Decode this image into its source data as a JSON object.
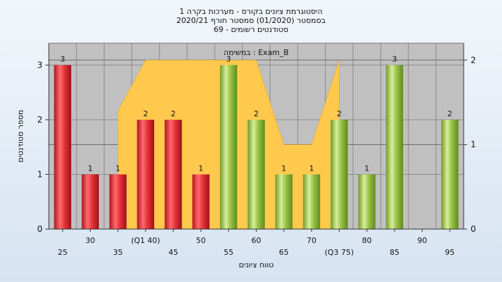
{
  "titles": [
    "היסטוגרמת ציונים בקורס - מערכות בקרה 1",
    "בסמסטר  (01/2020)  סמסטר חורף  2020/21",
    "סטודנטים רשומים - 69"
  ],
  "chart_data": {
    "type": "bar",
    "subtitle": "במשימה : Exam_B",
    "xlabel": "טווח ציונים",
    "ylabel": "מספר סטודנטים",
    "ylim": [
      0,
      3.4
    ],
    "y2lim": [
      0,
      2.2
    ],
    "yticks": [
      0,
      1,
      2,
      3
    ],
    "y2ticks": [
      0,
      1,
      2
    ],
    "grid": true,
    "categories": [
      "25",
      "30",
      "35",
      "40",
      "45",
      "50",
      "55",
      "60",
      "65",
      "70",
      "75",
      "80",
      "85",
      "90",
      "95"
    ],
    "tick_labels": [
      "25",
      "30",
      "35",
      "(Q1 40)",
      "45",
      "50",
      "55",
      "60",
      "65",
      "70",
      "(Q3 75)",
      "80",
      "85",
      "90",
      "95"
    ],
    "values": [
      3,
      1,
      1,
      2,
      2,
      1,
      3,
      2,
      1,
      1,
      2,
      1,
      3,
      0,
      2
    ],
    "value_labels": [
      "3",
      "1",
      "1",
      "2",
      "2",
      "1",
      "3",
      "2",
      "1",
      "1",
      "2",
      "1",
      "3",
      "",
      "2"
    ],
    "bar_group": [
      "red",
      "red",
      "red",
      "red",
      "red",
      "red",
      "green",
      "green",
      "green",
      "green",
      "green",
      "green",
      "green",
      "green",
      "green"
    ],
    "overlay_area": {
      "x": [
        "35",
        "40",
        "60",
        "65",
        "70",
        "75"
      ],
      "values": [
        1.4,
        2,
        2,
        1,
        1,
        2
      ],
      "color": "#ffc94d"
    },
    "colors": {
      "red_bar": "#e8343a",
      "green_bar": "#9cc44a",
      "plot_bg": "#c0c0c0",
      "area": "#ffc94d"
    }
  }
}
